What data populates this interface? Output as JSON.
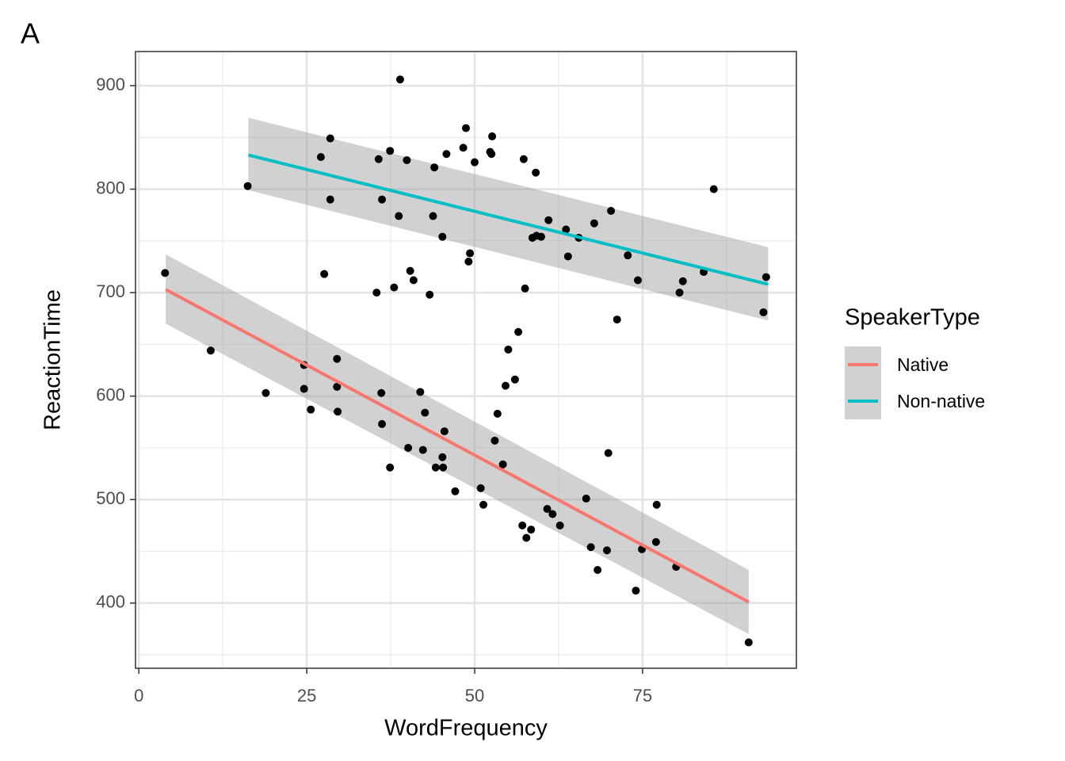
{
  "chart_data": {
    "type": "scatter",
    "panel_label": "A",
    "x_label": "WordFrequency",
    "y_label": "ReactionTime",
    "legend_title": "SpeakerType",
    "xlim": [
      -0.5,
      97.9
    ],
    "ylim": [
      337,
      933
    ],
    "xticks": [
      0,
      25,
      50,
      75
    ],
    "yticks": [
      400,
      500,
      600,
      700,
      800,
      900
    ],
    "minor_xticks": [
      12.5,
      37.5,
      62.5,
      87.5
    ],
    "minor_yticks": [
      350,
      450,
      550,
      650,
      750,
      850
    ],
    "grid": true,
    "points": {
      "color": "#000000",
      "x": [
        3.9,
        10.7,
        16.2,
        18.9,
        24.6,
        24.6,
        25.6,
        27.1,
        27.6,
        28.5,
        28.5,
        29.5,
        29.5,
        29.6,
        35.4,
        35.7,
        36.1,
        36.2,
        36.2,
        37.4,
        37.4,
        38.0,
        38.7,
        38.9,
        39.9,
        40.1,
        40.4,
        40.9,
        41.9,
        42.3,
        42.6,
        43.3,
        43.8,
        44.0,
        44.2,
        45.2,
        45.2,
        45.3,
        45.5,
        45.8,
        47.1,
        48.3,
        48.7,
        49.1,
        49.3,
        50.0,
        50.9,
        51.3,
        52.3,
        52.5,
        52.6,
        53.0,
        53.4,
        54.2,
        54.6,
        55.0,
        56.0,
        56.5,
        57.1,
        57.3,
        57.5,
        57.7,
        58.4,
        58.6,
        59.1,
        59.2,
        59.9,
        60.8,
        61.0,
        61.6,
        62.7,
        63.6,
        63.9,
        65.5,
        66.6,
        67.3,
        67.8,
        68.3,
        69.7,
        69.9,
        70.3,
        71.2,
        72.8,
        74.0,
        74.3,
        74.9,
        77.0,
        77.1,
        80.0,
        80.5,
        81.0,
        84.1,
        85.6,
        90.8,
        93.0,
        93.4
      ],
      "y": [
        719,
        644,
        803,
        603,
        630,
        607,
        587,
        831,
        718,
        849,
        790,
        636,
        609,
        585,
        700,
        829,
        603,
        573,
        790,
        531,
        837,
        705,
        774,
        906,
        828,
        550,
        721,
        712,
        604,
        548,
        584,
        698,
        774,
        821,
        531,
        754,
        541,
        531,
        566,
        834,
        508,
        840,
        859,
        730,
        738,
        826,
        511,
        495,
        836,
        834,
        851,
        557,
        583,
        534,
        610,
        645,
        616,
        662,
        475,
        829,
        704,
        463,
        471,
        753,
        816,
        755,
        754,
        491,
        770,
        486,
        475,
        761,
        735,
        753,
        501,
        454,
        767,
        432,
        451,
        545,
        779,
        674,
        736,
        412,
        712,
        452,
        459,
        495,
        435,
        700,
        711,
        720,
        800,
        362,
        681,
        715
      ]
    },
    "series": [
      {
        "name": "Native",
        "color": "#F8766D",
        "x": [
          4.0,
          90.8
        ],
        "values": [
          703,
          401
        ],
        "band_lower": [
          670,
          370
        ],
        "band_upper": [
          737,
          432
        ]
      },
      {
        "name": "Non-native",
        "color": "#00BFC4",
        "x": [
          16.3,
          93.7
        ],
        "values": [
          833,
          708
        ],
        "band_lower": [
          799,
          673
        ],
        "band_upper": [
          869,
          744
        ]
      }
    ],
    "band_color": "#999999"
  }
}
